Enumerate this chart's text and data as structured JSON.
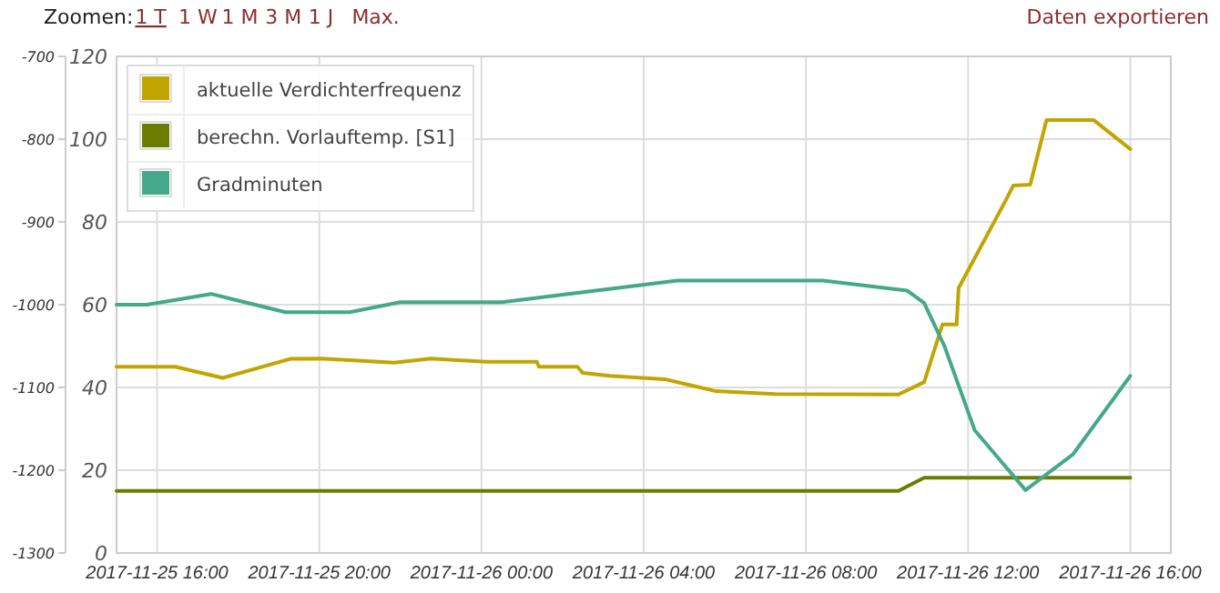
{
  "chart_data": {
    "type": "line",
    "annotations": [
      "Zoomen:",
      "1 T",
      "1 W",
      "1 M",
      "3 M",
      "1 J",
      "Max.",
      "Daten exportieren"
    ],
    "xlim": [
      "2017-11-25T15:00",
      "2017-11-26T17:00"
    ],
    "xticks": [
      {
        "value": "2017-11-25T16:00",
        "label": "2017-11-25 16:00"
      },
      {
        "value": "2017-11-25T20:00",
        "label": "2017-11-25 20:00"
      },
      {
        "value": "2017-11-26T00:00",
        "label": "2017-11-26 00:00"
      },
      {
        "value": "2017-11-26T04:00",
        "label": "2017-11-26 04:00"
      },
      {
        "value": "2017-11-26T08:00",
        "label": "2017-11-26 08:00"
      },
      {
        "value": "2017-11-26T12:00",
        "label": "2017-11-26 12:00"
      },
      {
        "value": "2017-11-26T16:00",
        "label": "2017-11-26 16:00"
      }
    ],
    "ylim": [
      0,
      120
    ],
    "yticks": [
      0,
      20,
      40,
      60,
      80,
      100,
      120
    ],
    "y2lim": [
      -1300,
      -700
    ],
    "y2ticks": [
      -1300,
      -1200,
      -1100,
      -1000,
      -900,
      -800,
      -700
    ],
    "grid": true,
    "legend": "top left",
    "line_style": "solid",
    "marker": "none",
    "series": [
      {
        "name": "aktuelle Verdichterfrequenz",
        "color": "#c2a500",
        "x": [
          "2017-11-25T15:00",
          "2017-11-25T16:27",
          "2017-11-25T17:37",
          "2017-11-25T19:17",
          "2017-11-25T20:03",
          "2017-11-25T21:51",
          "2017-11-25T22:45",
          "2017-11-26T00:06",
          "2017-11-26T01:22",
          "2017-11-26T01:25",
          "2017-11-26T02:22",
          "2017-11-26T02:30",
          "2017-11-26T03:10",
          "2017-11-26T04:31",
          "2017-11-26T05:47",
          "2017-11-26T07:14",
          "2017-11-26T10:17",
          "2017-11-26T10:55",
          "2017-11-26T11:22",
          "2017-11-26T11:43",
          "2017-11-26T11:46",
          "2017-11-26T12:56",
          "2017-11-26T13:07",
          "2017-11-26T13:32",
          "2017-11-26T13:56",
          "2017-11-26T15:06",
          "2017-11-26T16:00"
        ],
        "values": [
          45,
          45,
          42.3,
          46.9,
          47,
          46,
          47,
          46.2,
          46.2,
          45,
          45,
          43.5,
          42.8,
          42,
          39.1,
          38.4,
          38.3,
          41.3,
          55.2,
          55.2,
          64,
          85.3,
          88.8,
          89,
          104.6,
          104.6,
          97.6
        ]
      },
      {
        "name": "berechn. Vorlauftemp. [S1]",
        "color": "#6b7d00",
        "x": [
          "2017-11-25T15:00",
          "2017-11-26T10:17",
          "2017-11-26T10:55",
          "2017-11-26T16:00"
        ],
        "values": [
          15,
          15,
          18.2,
          18.2
        ]
      },
      {
        "name": "Gradminuten",
        "color": "#45a88b",
        "axis": "y2",
        "x": [
          "2017-11-25T15:00",
          "2017-11-25T15:45",
          "2017-11-25T17:20",
          "2017-11-25T19:10",
          "2017-11-25T20:45",
          "2017-11-25T22:00",
          "2017-11-26T00:30",
          "2017-11-26T04:50",
          "2017-11-26T08:25",
          "2017-11-26T10:30",
          "2017-11-26T10:55",
          "2017-11-26T11:25",
          "2017-11-26T12:10",
          "2017-11-26T13:25",
          "2017-11-26T14:35",
          "2017-11-26T16:00"
        ],
        "values": [
          -1000,
          -1000,
          -987,
          -1009,
          -1009,
          -997,
          -997,
          -971,
          -971,
          -983,
          -998,
          -1050,
          -1152,
          -1224,
          -1181,
          -1086
        ]
      }
    ]
  }
}
